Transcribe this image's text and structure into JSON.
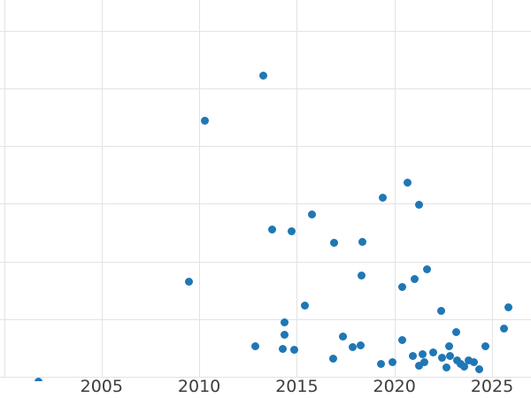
{
  "chart_data": {
    "type": "scatter",
    "title": "",
    "xlabel": "",
    "ylabel": "",
    "legend": false,
    "grid": true,
    "x_ticks": [
      {
        "label": "2005",
        "year": 2005
      },
      {
        "label": "2010",
        "year": 2010
      },
      {
        "label": "2015",
        "year": 2015
      },
      {
        "label": "2020",
        "year": 2020
      },
      {
        "label": "2025",
        "year": 2025
      }
    ],
    "x_gridline_years": [
      2000,
      2005,
      2010,
      2015,
      2020,
      2025
    ],
    "y_axis_labeled": false,
    "y_units_note": "y-axis labels not visible in view; y given in gridline units, bottom visible gridline = 0, one unit per gridline",
    "y_gridline_values": [
      0,
      1,
      2,
      3,
      4,
      5,
      6
    ],
    "xlim_visible": [
      1999.8,
      2027.0
    ],
    "ylim_visible": [
      -0.1,
      6.0
    ],
    "points": [
      [
        2001.76,
        -0.08
      ],
      [
        2009.47,
        1.65
      ],
      [
        2010.27,
        4.44
      ],
      [
        2012.88,
        0.53
      ],
      [
        2013.26,
        5.23
      ],
      [
        2013.74,
        2.55
      ],
      [
        2014.3,
        0.48
      ],
      [
        2014.35,
        0.95
      ],
      [
        2014.35,
        0.73
      ],
      [
        2014.74,
        2.52
      ],
      [
        2014.89,
        0.47
      ],
      [
        2015.4,
        1.23
      ],
      [
        2015.77,
        2.81
      ],
      [
        2016.87,
        0.32
      ],
      [
        2016.9,
        2.33
      ],
      [
        2017.38,
        0.7
      ],
      [
        2017.86,
        0.52
      ],
      [
        2018.27,
        0.54
      ],
      [
        2018.31,
        1.76
      ],
      [
        2018.34,
        2.34
      ],
      [
        2019.29,
        0.23
      ],
      [
        2019.39,
        3.1
      ],
      [
        2019.92,
        0.25
      ],
      [
        2020.38,
        1.56
      ],
      [
        2020.39,
        0.64
      ],
      [
        2020.68,
        3.37
      ],
      [
        2020.95,
        0.36
      ],
      [
        2021.03,
        1.69
      ],
      [
        2021.24,
        0.19
      ],
      [
        2021.25,
        2.99
      ],
      [
        2021.44,
        0.39
      ],
      [
        2021.55,
        0.26
      ],
      [
        2021.68,
        1.86
      ],
      [
        2021.98,
        0.42
      ],
      [
        2022.38,
        1.14
      ],
      [
        2022.42,
        0.33
      ],
      [
        2022.67,
        0.16
      ],
      [
        2022.79,
        0.53
      ],
      [
        2022.84,
        0.36
      ],
      [
        2023.17,
        0.77
      ],
      [
        2023.19,
        0.28
      ],
      [
        2023.41,
        0.23
      ],
      [
        2023.57,
        0.17
      ],
      [
        2023.8,
        0.29
      ],
      [
        2024.07,
        0.25
      ],
      [
        2024.36,
        0.13
      ],
      [
        2024.65,
        0.53
      ],
      [
        2025.61,
        0.84
      ],
      [
        2025.86,
        1.21
      ]
    ],
    "marker_color": "#1f77b4",
    "marker_size_px": 9
  },
  "colors": {
    "background": "#ffffff",
    "gridline": "#e3e3e3",
    "dot": "#1f77b4",
    "tick_label": "#3d3d3d"
  }
}
